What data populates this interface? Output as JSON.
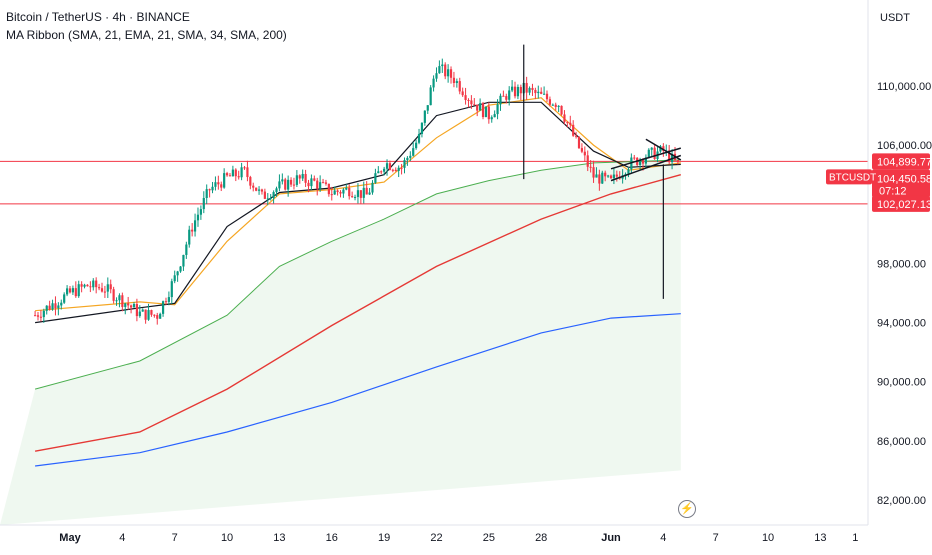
{
  "header": {
    "symbol_title": "Bitcoin / TetherUS · 4h · BINANCE",
    "indicator_label": "MA Ribbon (SMA, 21, EMA, 21, SMA, 34, SMA, 200)"
  },
  "price_axis": {
    "currency": "USDT",
    "ticks": [
      "110,000.00",
      "106,000.00",
      "98,000.00",
      "94,000.00",
      "90,000.00",
      "86,000.00",
      "82,000.00"
    ],
    "tick_values": [
      110000,
      106000,
      98000,
      94000,
      90000,
      86000,
      82000
    ]
  },
  "price_labels": {
    "upper_line_price": "104,899.77",
    "symbol_badge": "BTCUSDT",
    "current_price": "104,450.58",
    "countdown": "07:12",
    "lower_line_price": "102,027.13"
  },
  "time_axis": {
    "labels": [
      "May",
      "4",
      "7",
      "10",
      "13",
      "16",
      "19",
      "22",
      "25",
      "28",
      "Jun",
      "4",
      "7",
      "10",
      "13",
      "1"
    ]
  },
  "colors": {
    "up": "#089981",
    "down": "#f23645",
    "sma200": "#e53935",
    "sma34": "#4caf50",
    "ema21": "#131722",
    "sma21": "#f5a623",
    "long_ma": "#2962ff",
    "horizontal_lines": "#f23645",
    "ribbon_fill": "#e8f5e9"
  },
  "icons": {
    "events": "lightning-icon"
  },
  "chart_data": {
    "type": "candlestick",
    "title": "Bitcoin / TetherUS · 4h · BINANCE",
    "ylim": [
      80500,
      115000
    ],
    "y_scale": "linear",
    "grid": false,
    "x_range": [
      "Apr 30",
      "Jun 15"
    ],
    "date_ticks": [
      {
        "label": "May",
        "date": "May 1"
      },
      {
        "label": "4",
        "date": "May 4"
      },
      {
        "label": "7",
        "date": "May 7"
      },
      {
        "label": "10",
        "date": "May 10"
      },
      {
        "label": "13",
        "date": "May 13"
      },
      {
        "label": "16",
        "date": "May 16"
      },
      {
        "label": "19",
        "date": "May 19"
      },
      {
        "label": "22",
        "date": "May 22"
      },
      {
        "label": "25",
        "date": "May 25"
      },
      {
        "label": "28",
        "date": "May 28"
      },
      {
        "label": "Jun",
        "date": "Jun 1"
      },
      {
        "label": "4",
        "date": "Jun 4"
      },
      {
        "label": "7",
        "date": "Jun 7"
      },
      {
        "label": "10",
        "date": "Jun 10"
      },
      {
        "label": "13",
        "date": "Jun 13"
      },
      {
        "label": "1",
        "date": "Jun 15"
      }
    ],
    "price_path": [
      [
        "Apr 30",
        94500
      ],
      [
        "May 1",
        96000
      ],
      [
        "May 2",
        96500
      ],
      [
        "May 3",
        96300
      ],
      [
        "May 4",
        95500
      ],
      [
        "May 5",
        94600
      ],
      [
        "May 6",
        94500
      ],
      [
        "May 7",
        97000
      ],
      [
        "May 8",
        100500
      ],
      [
        "May 9",
        103000
      ],
      [
        "May 10",
        103800
      ],
      [
        "May 11",
        104200
      ],
      [
        "May 12",
        102500
      ],
      [
        "May 13",
        103200
      ],
      [
        "May 14",
        103700
      ],
      [
        "May 15",
        103500
      ],
      [
        "May 16",
        102800
      ],
      [
        "May 17",
        103000
      ],
      [
        "May 18",
        102600
      ],
      [
        "May 19",
        104800
      ],
      [
        "May 20",
        104500
      ],
      [
        "May 21",
        106500
      ],
      [
        "May 22",
        111300
      ],
      [
        "May 23",
        110500
      ],
      [
        "May 24",
        109000
      ],
      [
        "May 25",
        108000
      ],
      [
        "May 26",
        109400
      ],
      [
        "May 27",
        109800
      ],
      [
        "May 28",
        109300
      ],
      [
        "May 29",
        108800
      ],
      [
        "May 30",
        106200
      ],
      [
        "May 31",
        103900
      ],
      [
        "Jun 1",
        103500
      ],
      [
        "Jun 2",
        104700
      ],
      [
        "Jun 3",
        105300
      ],
      [
        "Jun 4",
        105600
      ],
      [
        "Jun 5",
        104450
      ]
    ],
    "series": [
      {
        "name": "SMA 21",
        "values": [
          [
            "Apr 30",
            94800
          ],
          [
            "May 5",
            95400
          ],
          [
            "May 7",
            95200
          ],
          [
            "May 10",
            99500
          ],
          [
            "May 13",
            102700
          ],
          [
            "May 16",
            103000
          ],
          [
            "May 19",
            103500
          ],
          [
            "May 22",
            106500
          ],
          [
            "May 25",
            108700
          ],
          [
            "May 28",
            109200
          ],
          [
            "May 31",
            106000
          ],
          [
            "Jun 2",
            104300
          ],
          [
            "Jun 5",
            104800
          ]
        ]
      },
      {
        "name": "EMA 21",
        "values": [
          [
            "Apr 30",
            94000
          ],
          [
            "May 5",
            95000
          ],
          [
            "May 7",
            95300
          ],
          [
            "May 10",
            100500
          ],
          [
            "May 13",
            102800
          ],
          [
            "May 16",
            103100
          ],
          [
            "May 19",
            104000
          ],
          [
            "May 22",
            108000
          ],
          [
            "May 25",
            108900
          ],
          [
            "May 28",
            108900
          ],
          [
            "May 31",
            105600
          ],
          [
            "Jun 2",
            104500
          ],
          [
            "Jun 5",
            104700
          ]
        ]
      },
      {
        "name": "SMA 34",
        "values": [
          [
            "Apr 30",
            89500
          ],
          [
            "May 5",
            91400
          ],
          [
            "May 10",
            94500
          ],
          [
            "May 13",
            97800
          ],
          [
            "May 16",
            99500
          ],
          [
            "May 19",
            101000
          ],
          [
            "May 22",
            102700
          ],
          [
            "May 25",
            103600
          ],
          [
            "May 28",
            104300
          ],
          [
            "May 31",
            104800
          ],
          [
            "Jun 5",
            105000
          ]
        ]
      },
      {
        "name": "SMA 200",
        "values": [
          [
            "Apr 30",
            85300
          ],
          [
            "May 5",
            86600
          ],
          [
            "May 10",
            89500
          ],
          [
            "May 16",
            93800
          ],
          [
            "May 22",
            97800
          ],
          [
            "May 28",
            101000
          ],
          [
            "Jun 1",
            102700
          ],
          [
            "Jun 5",
            104000
          ]
        ]
      },
      {
        "name": "SMA 200 (blue)",
        "values": [
          [
            "Apr 30",
            84300
          ],
          [
            "May 5",
            85200
          ],
          [
            "May 10",
            86600
          ],
          [
            "May 16",
            88600
          ],
          [
            "May 22",
            91000
          ],
          [
            "May 28",
            93300
          ],
          [
            "Jun 1",
            94300
          ],
          [
            "Jun 5",
            94600
          ]
        ]
      }
    ],
    "horizontal_levels": [
      104899.77,
      102027.13
    ],
    "wicks": [
      {
        "date": "May 27",
        "high": 112800,
        "low": 103700
      },
      {
        "date": "Jun 4",
        "high": 104700,
        "low": 95600
      }
    ],
    "channel_lines": [
      {
        "from": [
          "Jun 1",
          104400
        ],
        "to": [
          "Jun 5",
          105800
        ]
      },
      {
        "from": [
          "Jun 1",
          103600
        ],
        "to": [
          "Jun 5",
          105300
        ]
      },
      {
        "from": [
          "Jun 3",
          106400
        ],
        "to": [
          "Jun 5",
          105000
        ]
      }
    ]
  }
}
